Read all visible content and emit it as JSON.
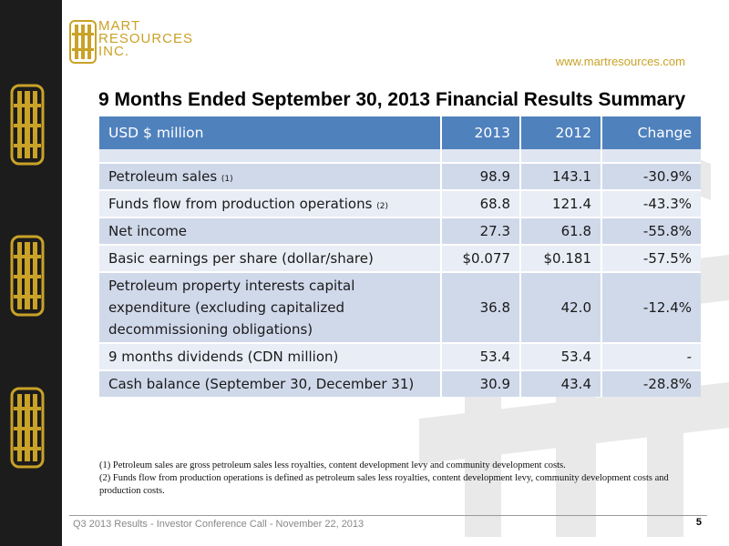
{
  "brand": {
    "lines": [
      "MART",
      "RESOURCES",
      "INC."
    ],
    "website": "www.martresources.com",
    "color": "#c9a227"
  },
  "title": "9 Months Ended September 30, 2013 Financial Results Summary",
  "table": {
    "header_color": "#4f81bd",
    "headers": [
      "USD $ million",
      "2013",
      "2012",
      "Change"
    ],
    "rows": [
      {
        "label": "Petroleum sales",
        "ref": "(1)",
        "v2013": "98.9",
        "v2012": "143.1",
        "change": "-30.9%"
      },
      {
        "label": "Funds flow from production operations",
        "ref": "(2)",
        "v2013": "68.8",
        "v2012": "121.4",
        "change": "-43.3%"
      },
      {
        "label": "Net income",
        "ref": "",
        "v2013": "27.3",
        "v2012": "61.8",
        "change": "-55.8%"
      },
      {
        "label": "Basic earnings per share (dollar/share)",
        "ref": "",
        "v2013": "$0.077",
        "v2012": "$0.181",
        "change": "-57.5%"
      },
      {
        "label": "Petroleum property interests capital expenditure (excluding capitalized decommissioning obligations)",
        "ref": "",
        "v2013": "36.8",
        "v2012": "42.0",
        "change": "-12.4%"
      },
      {
        "label": "9 months dividends (CDN million)",
        "ref": "",
        "v2013": "53.4",
        "v2012": "53.4",
        "change": "-"
      },
      {
        "label": "Cash balance (September 30, December 31)",
        "ref": "",
        "v2013": "30.9",
        "v2012": "43.4",
        "change": "-28.8%"
      }
    ]
  },
  "footnotes": [
    "(1)  Petroleum sales are gross petroleum sales less royalties, content development levy and community development costs.",
    "(2)  Funds flow from production operations  is defined as petroleum sales less royalties, content development levy, community development costs and production costs."
  ],
  "footer": {
    "text": "Q3 2013  Results - Investor Conference Call - November 22, 2013",
    "page": "5"
  }
}
